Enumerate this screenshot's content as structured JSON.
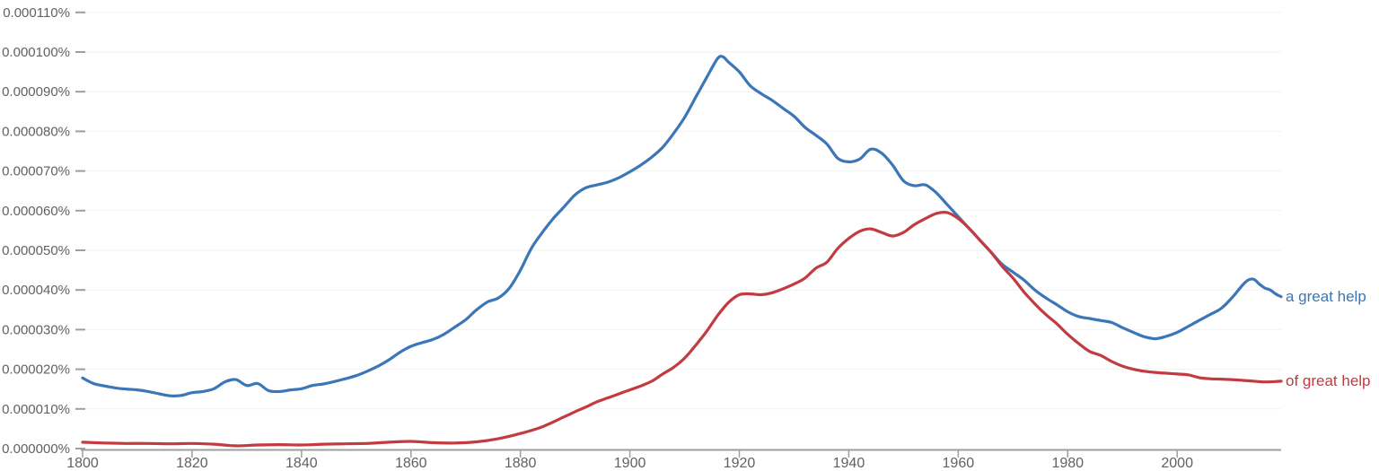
{
  "chart_data": {
    "type": "line",
    "title": "",
    "xlabel": "",
    "ylabel": "",
    "grid": true,
    "legend_position": "end-of-line-labels-right",
    "xlim": [
      1800,
      2019
    ],
    "x_ticks": [
      "1800",
      "1820",
      "1840",
      "1860",
      "1880",
      "1900",
      "1920",
      "1940",
      "1960",
      "1980",
      "2000"
    ],
    "x_tick_years": [
      1800,
      1820,
      1840,
      1860,
      1880,
      1900,
      1920,
      1940,
      1960,
      1980,
      2000
    ],
    "y_tick_labels_bottom_up": [
      "0.000000%",
      "0.000010%",
      "0.000020%",
      "0.000030%",
      "0.000040%",
      "0.000050%",
      "0.000060%",
      "0.000070%",
      "0.000080%",
      "0.000090%",
      "0.000100%",
      "0.000110%"
    ],
    "ylim_percent": [
      0,
      0.00011
    ],
    "values_unit": "percent x 1e-6 (frequency of ngram)",
    "colors": {
      "blue_series": "#3b76b8",
      "red_series": "#c23b40",
      "gridline": "#f2f2f2",
      "axis_line": "#9e9e9e",
      "tick_text": "#616161"
    },
    "series": [
      {
        "name": "a great help",
        "color": "#3b76b8",
        "points": [
          [
            1800,
            17.8
          ],
          [
            1802,
            16.4
          ],
          [
            1804,
            15.8
          ],
          [
            1806,
            15.3
          ],
          [
            1808,
            15.0
          ],
          [
            1810,
            14.8
          ],
          [
            1812,
            14.4
          ],
          [
            1814,
            13.8
          ],
          [
            1816,
            13.3
          ],
          [
            1818,
            13.4
          ],
          [
            1820,
            14.1
          ],
          [
            1822,
            14.4
          ],
          [
            1824,
            15.1
          ],
          [
            1826,
            16.8
          ],
          [
            1828,
            17.4
          ],
          [
            1830,
            15.9
          ],
          [
            1832,
            16.4
          ],
          [
            1834,
            14.6
          ],
          [
            1836,
            14.4
          ],
          [
            1838,
            14.8
          ],
          [
            1840,
            15.1
          ],
          [
            1842,
            15.9
          ],
          [
            1844,
            16.3
          ],
          [
            1846,
            16.9
          ],
          [
            1848,
            17.6
          ],
          [
            1850,
            18.4
          ],
          [
            1852,
            19.5
          ],
          [
            1854,
            20.8
          ],
          [
            1856,
            22.4
          ],
          [
            1858,
            24.3
          ],
          [
            1860,
            25.8
          ],
          [
            1862,
            26.7
          ],
          [
            1864,
            27.5
          ],
          [
            1866,
            28.8
          ],
          [
            1868,
            30.6
          ],
          [
            1870,
            32.5
          ],
          [
            1872,
            35.0
          ],
          [
            1874,
            37.0
          ],
          [
            1876,
            38.0
          ],
          [
            1878,
            40.5
          ],
          [
            1880,
            45.0
          ],
          [
            1882,
            50.5
          ],
          [
            1884,
            54.5
          ],
          [
            1886,
            58.0
          ],
          [
            1888,
            61.0
          ],
          [
            1890,
            64.0
          ],
          [
            1892,
            65.8
          ],
          [
            1894,
            66.5
          ],
          [
            1896,
            67.2
          ],
          [
            1898,
            68.3
          ],
          [
            1900,
            69.8
          ],
          [
            1902,
            71.5
          ],
          [
            1904,
            73.5
          ],
          [
            1906,
            76.0
          ],
          [
            1908,
            79.5
          ],
          [
            1910,
            83.5
          ],
          [
            1912,
            88.5
          ],
          [
            1914,
            93.5
          ],
          [
            1916,
            98.3
          ],
          [
            1917,
            98.8
          ],
          [
            1918,
            97.5
          ],
          [
            1920,
            95.0
          ],
          [
            1922,
            91.5
          ],
          [
            1924,
            89.5
          ],
          [
            1926,
            87.8
          ],
          [
            1928,
            85.8
          ],
          [
            1930,
            83.8
          ],
          [
            1932,
            81.0
          ],
          [
            1934,
            79.0
          ],
          [
            1936,
            76.8
          ],
          [
            1938,
            73.2
          ],
          [
            1940,
            72.3
          ],
          [
            1942,
            73.0
          ],
          [
            1944,
            75.5
          ],
          [
            1946,
            74.5
          ],
          [
            1948,
            71.5
          ],
          [
            1950,
            67.5
          ],
          [
            1952,
            66.3
          ],
          [
            1954,
            66.5
          ],
          [
            1956,
            64.5
          ],
          [
            1958,
            61.5
          ],
          [
            1960,
            58.5
          ],
          [
            1962,
            55.5
          ],
          [
            1964,
            52.5
          ],
          [
            1966,
            49.5
          ],
          [
            1968,
            46.5
          ],
          [
            1970,
            44.5
          ],
          [
            1972,
            42.5
          ],
          [
            1974,
            40.0
          ],
          [
            1976,
            38.0
          ],
          [
            1978,
            36.3
          ],
          [
            1980,
            34.5
          ],
          [
            1982,
            33.3
          ],
          [
            1984,
            32.8
          ],
          [
            1986,
            32.3
          ],
          [
            1988,
            31.8
          ],
          [
            1990,
            30.5
          ],
          [
            1992,
            29.3
          ],
          [
            1994,
            28.2
          ],
          [
            1996,
            27.7
          ],
          [
            1998,
            28.3
          ],
          [
            2000,
            29.3
          ],
          [
            2002,
            30.8
          ],
          [
            2004,
            32.3
          ],
          [
            2006,
            33.8
          ],
          [
            2008,
            35.3
          ],
          [
            2010,
            38.0
          ],
          [
            2012,
            41.3
          ],
          [
            2013,
            42.5
          ],
          [
            2014,
            42.7
          ],
          [
            2015,
            41.5
          ],
          [
            2016,
            40.5
          ],
          [
            2017,
            40.0
          ],
          [
            2018,
            39.0
          ],
          [
            2019,
            38.3
          ]
        ]
      },
      {
        "name": "of great help",
        "color": "#c23b40",
        "points": [
          [
            1800,
            1.6
          ],
          [
            1804,
            1.4
          ],
          [
            1808,
            1.3
          ],
          [
            1812,
            1.3
          ],
          [
            1816,
            1.2
          ],
          [
            1820,
            1.3
          ],
          [
            1824,
            1.1
          ],
          [
            1828,
            0.7
          ],
          [
            1832,
            0.9
          ],
          [
            1836,
            1.0
          ],
          [
            1840,
            0.9
          ],
          [
            1844,
            1.1
          ],
          [
            1848,
            1.2
          ],
          [
            1852,
            1.3
          ],
          [
            1856,
            1.6
          ],
          [
            1860,
            1.8
          ],
          [
            1864,
            1.5
          ],
          [
            1868,
            1.4
          ],
          [
            1872,
            1.7
          ],
          [
            1876,
            2.5
          ],
          [
            1880,
            3.8
          ],
          [
            1884,
            5.5
          ],
          [
            1888,
            8.0
          ],
          [
            1890,
            9.3
          ],
          [
            1892,
            10.5
          ],
          [
            1894,
            11.8
          ],
          [
            1896,
            12.8
          ],
          [
            1898,
            13.8
          ],
          [
            1900,
            14.8
          ],
          [
            1902,
            15.8
          ],
          [
            1904,
            17.0
          ],
          [
            1906,
            18.8
          ],
          [
            1908,
            20.5
          ],
          [
            1910,
            22.8
          ],
          [
            1912,
            26.0
          ],
          [
            1914,
            29.5
          ],
          [
            1916,
            33.5
          ],
          [
            1918,
            36.8
          ],
          [
            1920,
            38.8
          ],
          [
            1922,
            39.0
          ],
          [
            1924,
            38.8
          ],
          [
            1926,
            39.3
          ],
          [
            1928,
            40.3
          ],
          [
            1930,
            41.5
          ],
          [
            1932,
            43.0
          ],
          [
            1934,
            45.5
          ],
          [
            1936,
            47.0
          ],
          [
            1938,
            50.5
          ],
          [
            1940,
            53.0
          ],
          [
            1942,
            54.8
          ],
          [
            1944,
            55.4
          ],
          [
            1946,
            54.5
          ],
          [
            1948,
            53.6
          ],
          [
            1950,
            54.5
          ],
          [
            1952,
            56.5
          ],
          [
            1954,
            58.0
          ],
          [
            1956,
            59.3
          ],
          [
            1958,
            59.5
          ],
          [
            1960,
            58.0
          ],
          [
            1962,
            55.5
          ],
          [
            1964,
            52.5
          ],
          [
            1966,
            49.5
          ],
          [
            1968,
            46.0
          ],
          [
            1970,
            43.0
          ],
          [
            1972,
            39.5
          ],
          [
            1974,
            36.5
          ],
          [
            1976,
            33.8
          ],
          [
            1978,
            31.5
          ],
          [
            1980,
            28.8
          ],
          [
            1982,
            26.5
          ],
          [
            1984,
            24.5
          ],
          [
            1986,
            23.5
          ],
          [
            1988,
            22.0
          ],
          [
            1990,
            20.8
          ],
          [
            1992,
            20.0
          ],
          [
            1994,
            19.5
          ],
          [
            1996,
            19.2
          ],
          [
            1998,
            19.0
          ],
          [
            2000,
            18.8
          ],
          [
            2002,
            18.6
          ],
          [
            2004,
            17.9
          ],
          [
            2006,
            17.6
          ],
          [
            2008,
            17.5
          ],
          [
            2010,
            17.4
          ],
          [
            2012,
            17.2
          ],
          [
            2014,
            17.0
          ],
          [
            2016,
            16.8
          ],
          [
            2018,
            16.9
          ],
          [
            2019,
            17.0
          ]
        ]
      }
    ]
  }
}
